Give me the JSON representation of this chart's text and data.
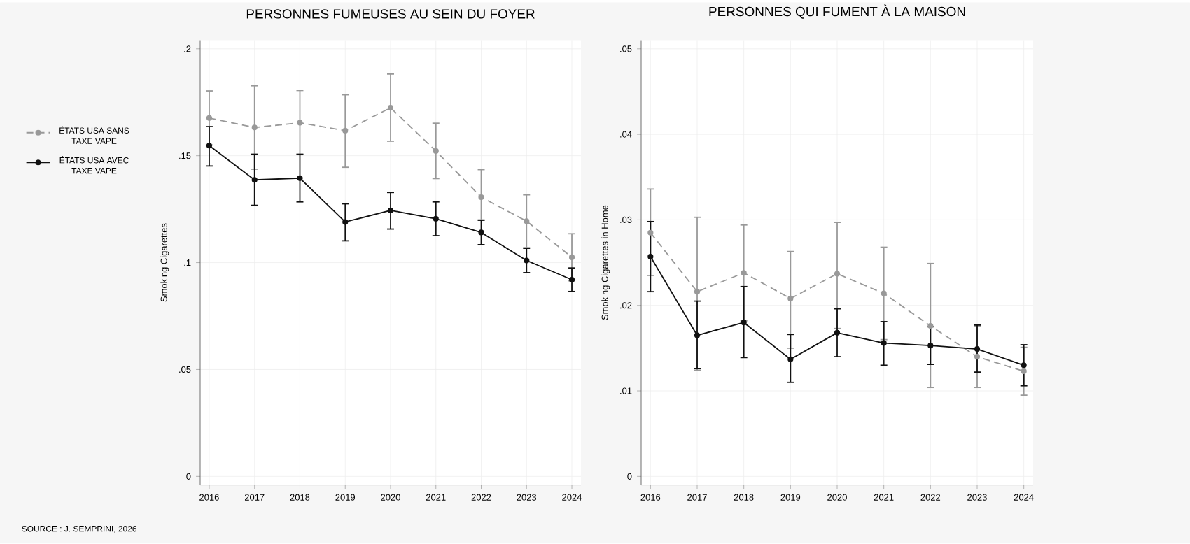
{
  "chart_data": [
    {
      "type": "line",
      "title": "PERSONNES FUMEUSES AU SEIN DU FOYER",
      "ylabel": "Smoking Cigarettes",
      "annotations": [
        "SOURCE : J. SEMPRINI, 2026"
      ],
      "x": [
        2016,
        2017,
        2018,
        2019,
        2020,
        2021,
        2022,
        2023,
        2024
      ],
      "xlim": [
        2015.8,
        2024.2
      ],
      "xticks": [
        2016,
        2017,
        2018,
        2019,
        2020,
        2021,
        2022,
        2023,
        2024
      ],
      "ylim": [
        -0.004,
        0.204
      ],
      "yticks": [
        {
          "value": 0,
          "label": "0"
        },
        {
          "value": 0.05,
          "label": ".05"
        },
        {
          "value": 0.1,
          "label": ".1"
        },
        {
          "value": 0.15,
          "label": ".15"
        },
        {
          "value": 0.2,
          "label": ".2"
        }
      ],
      "grid": true,
      "legend": "left",
      "marker": "circle",
      "series": [
        {
          "name": "ÉTATS USA SANS TAXE VAPE",
          "color": "#999999",
          "line_style": "dashed",
          "values": [
            0.1676,
            0.1632,
            0.1654,
            0.1617,
            0.1724,
            0.1522,
            0.1306,
            0.1194,
            0.1025
          ],
          "errors": [
            [
              0.155,
              0.1803
            ],
            [
              0.1437,
              0.1827
            ],
            [
              0.1505,
              0.1805
            ],
            [
              0.1446,
              0.1785
            ],
            [
              0.1568,
              0.1882
            ],
            [
              0.1393,
              0.1652
            ],
            [
              0.12,
              0.1435
            ],
            [
              0.107,
              0.1317
            ],
            [
              0.0915,
              0.1135
            ]
          ]
        },
        {
          "name": "ÉTATS USA AVEC TAXE VAPE",
          "color": "#111111",
          "line_style": "solid",
          "values": [
            0.1547,
            0.1387,
            0.1395,
            0.119,
            0.1244,
            0.1205,
            0.1141,
            0.101,
            0.092
          ],
          "errors": [
            [
              0.1452,
              0.1636
            ],
            [
              0.1268,
              0.1507
            ],
            [
              0.1284,
              0.1507
            ],
            [
              0.1102,
              0.1275
            ],
            [
              0.1157,
              0.1328
            ],
            [
              0.1126,
              0.1284
            ],
            [
              0.1084,
              0.1198
            ],
            [
              0.0953,
              0.1067
            ],
            [
              0.0865,
              0.0975
            ]
          ]
        }
      ]
    },
    {
      "type": "line",
      "title": "PERSONNES QUI FUMENT À LA MAISON",
      "ylabel": "Smoking Cigarettes in Home",
      "x": [
        2016,
        2017,
        2018,
        2019,
        2020,
        2021,
        2022,
        2023,
        2024
      ],
      "xlim": [
        2015.8,
        2024.2
      ],
      "xticks": [
        2016,
        2017,
        2018,
        2019,
        2020,
        2021,
        2022,
        2023,
        2024
      ],
      "ylim": [
        -0.001,
        0.051
      ],
      "yticks": [
        {
          "value": 0,
          "label": "0"
        },
        {
          "value": 0.01,
          "label": ".01"
        },
        {
          "value": 0.02,
          "label": ".02"
        },
        {
          "value": 0.03,
          "label": ".03"
        },
        {
          "value": 0.04,
          "label": ".04"
        },
        {
          "value": 0.05,
          "label": ".05"
        }
      ],
      "grid": true,
      "marker": "circle",
      "series": [
        {
          "color": "#999999",
          "line_style": "dashed",
          "values": [
            0.0285,
            0.0216,
            0.0238,
            0.0208,
            0.0237,
            0.0214,
            0.0176,
            0.014,
            0.0123
          ],
          "errors": [
            [
              0.0235,
              0.0336
            ],
            [
              0.0124,
              0.0303
            ],
            [
              0.0182,
              0.0294
            ],
            [
              0.015,
              0.0263
            ],
            [
              0.0173,
              0.0297
            ],
            [
              0.016,
              0.0268
            ],
            [
              0.0104,
              0.0249
            ],
            [
              0.0104,
              0.0176
            ],
            [
              0.0095,
              0.0151
            ]
          ]
        },
        {
          "color": "#111111",
          "line_style": "solid",
          "values": [
            0.0257,
            0.0165,
            0.018,
            0.0137,
            0.0168,
            0.0156,
            0.0153,
            0.0149,
            0.013
          ],
          "errors": [
            [
              0.0216,
              0.0298
            ],
            [
              0.0126,
              0.0205
            ],
            [
              0.0139,
              0.0222
            ],
            [
              0.011,
              0.0166
            ],
            [
              0.014,
              0.0196
            ],
            [
              0.013,
              0.0181
            ],
            [
              0.0131,
              0.0175
            ],
            [
              0.0122,
              0.0177
            ],
            [
              0.0106,
              0.0154
            ]
          ]
        }
      ]
    }
  ]
}
